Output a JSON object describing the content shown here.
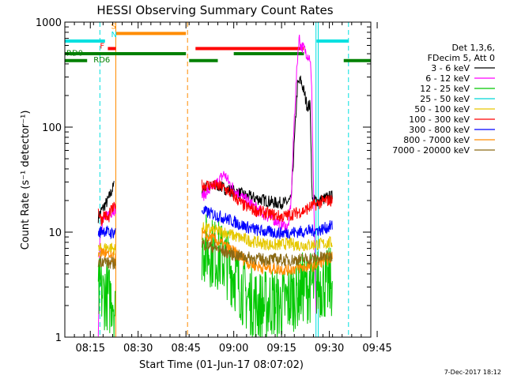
{
  "chart_data": {
    "type": "line",
    "title": "HESSI Observing Summary Count Rates",
    "xlabel": "Start Time (01-Jun-17 08:07:02)",
    "ylabel": "Count Rate (s⁻¹ detector⁻¹)",
    "y_scale": "log",
    "ylim": [
      1,
      1000
    ],
    "xlim_min": [
      0,
      96
    ],
    "x_ticks": [
      {
        "label": "08:15",
        "t": 8
      },
      {
        "label": "08:30",
        "t": 23
      },
      {
        "label": "08:45",
        "t": 38
      },
      {
        "label": "09:00",
        "t": 53
      },
      {
        "label": "09:15",
        "t": 68
      },
      {
        "label": "09:30",
        "t": 83
      },
      {
        "label": "09:45",
        "t": 98
      }
    ],
    "y_ticks": [
      {
        "label": "1",
        "v": 1
      },
      {
        "label": "10",
        "v": 10
      },
      {
        "label": "100",
        "v": 100
      },
      {
        "label": "1000",
        "v": 1000
      }
    ],
    "legend_header": [
      "Det 1,3,6,",
      "FDecim 5, Att 0"
    ],
    "series": [
      {
        "name": "3 - 6 keV",
        "color": "#000000",
        "segments": [
          [
            [
              10.5,
              14
            ],
            [
              11.5,
              16
            ],
            [
              12.5,
              18
            ],
            [
              13.5,
              20
            ],
            [
              14.5,
              24
            ],
            [
              15.5,
              28
            ]
          ],
          [
            [
              43,
              26
            ],
            [
              46,
              27
            ],
            [
              48,
              28
            ],
            [
              50,
              26
            ],
            [
              52,
              25
            ],
            [
              54,
              24
            ],
            [
              57,
              22
            ],
            [
              60,
              21
            ],
            [
              63,
              20
            ],
            [
              66,
              19
            ],
            [
              69,
              19
            ],
            [
              71,
              20
            ],
            [
              72,
              70
            ],
            [
              73,
              250
            ],
            [
              74,
              280
            ],
            [
              75,
              220
            ],
            [
              76,
              160
            ],
            [
              77,
              160
            ],
            [
              77.6,
              20
            ],
            [
              80,
              20
            ],
            [
              82,
              21
            ],
            [
              84,
              22
            ]
          ]
        ]
      },
      {
        "name": "6 - 12 keV",
        "color": "#ff00ff",
        "segments": [
          [
            [
              10.5,
              1.1
            ],
            [
              11,
              10
            ],
            [
              12,
              13
            ],
            [
              13,
              14
            ],
            [
              14,
              15
            ],
            [
              15,
              16
            ],
            [
              16,
              17
            ]
          ],
          [
            [
              43,
              22
            ],
            [
              46,
              26
            ],
            [
              48,
              30
            ],
            [
              50,
              36
            ],
            [
              52,
              28
            ],
            [
              54,
              24
            ],
            [
              56,
              21
            ],
            [
              58,
              19
            ],
            [
              60,
              17
            ],
            [
              62,
              15
            ],
            [
              64,
              14
            ],
            [
              66,
              13
            ],
            [
              68,
              12
            ],
            [
              70,
              11
            ],
            [
              71,
              20
            ],
            [
              72,
              120
            ],
            [
              73,
              450
            ],
            [
              73.5,
              720
            ],
            [
              74,
              600
            ],
            [
              75,
              560
            ],
            [
              76,
              500
            ],
            [
              77,
              450
            ],
            [
              77.5,
              200
            ],
            [
              78,
              30
            ],
            [
              78.5,
              5
            ],
            [
              79,
              1
            ]
          ]
        ]
      },
      {
        "name": "12 - 25 keV",
        "color": "#00c800",
        "segments": [
          [
            [
              10.5,
              2.3
            ],
            [
              11,
              2.8
            ],
            [
              12,
              2.5
            ],
            [
              13,
              2.7
            ],
            [
              14,
              2.2
            ],
            [
              15,
              2.6
            ],
            [
              16,
              1.5
            ]
          ],
          [
            [
              43,
              7.2
            ],
            [
              45,
              6.8
            ],
            [
              47,
              6.2
            ],
            [
              49,
              5.8
            ],
            [
              51,
              5
            ],
            [
              53,
              4
            ],
            [
              55,
              3.2
            ],
            [
              57,
              2.4
            ],
            [
              59,
              2.2
            ],
            [
              61,
              2
            ],
            [
              63,
              2
            ],
            [
              65,
              2.2
            ],
            [
              67,
              2
            ],
            [
              69,
              2.1
            ],
            [
              71,
              2.4
            ],
            [
              73,
              2.7
            ],
            [
              75,
              3
            ],
            [
              77,
              3
            ],
            [
              79,
              3.2
            ],
            [
              81,
              3.3
            ],
            [
              82,
              3.1
            ],
            [
              84,
              3.4
            ]
          ]
        ]
      },
      {
        "name": "25 - 50 keV",
        "color": "#00d8d8",
        "segments": []
      },
      {
        "name": "50 - 100 keV",
        "color": "#e6c800",
        "segments": [
          [
            [
              10.5,
              6.8
            ],
            [
              12,
              7
            ],
            [
              14,
              7.2
            ],
            [
              16,
              6.8
            ]
          ],
          [
            [
              43,
              11
            ],
            [
              46,
              10.5
            ],
            [
              50,
              10
            ],
            [
              54,
              9
            ],
            [
              58,
              8.3
            ],
            [
              62,
              7.8
            ],
            [
              66,
              7.5
            ],
            [
              70,
              7.8
            ],
            [
              74,
              7.5
            ],
            [
              78,
              7.6
            ],
            [
              82,
              7.8
            ],
            [
              84,
              8
            ]
          ]
        ]
      },
      {
        "name": "100 - 300 keV",
        "color": "#ff0000",
        "segments": [
          [
            [
              10.5,
              16
            ],
            [
              11.5,
              13
            ],
            [
              12.5,
              15
            ],
            [
              13.5,
              13
            ],
            [
              14.5,
              16
            ],
            [
              15.5,
              17
            ],
            [
              16,
              20
            ]
          ],
          [
            [
              43,
              28
            ],
            [
              46,
              28
            ],
            [
              49,
              27
            ],
            [
              51,
              25
            ],
            [
              53,
              22
            ],
            [
              56,
              18
            ],
            [
              60,
              16
            ],
            [
              64,
              15
            ],
            [
              68,
              14
            ],
            [
              72,
              15
            ],
            [
              75,
              16
            ],
            [
              78,
              18
            ],
            [
              82,
              20
            ],
            [
              84,
              20
            ]
          ]
        ]
      },
      {
        "name": "300 - 800 keV",
        "color": "#0000ff",
        "segments": [
          [
            [
              10.5,
              9.8
            ],
            [
              12,
              10.5
            ],
            [
              14,
              9.8
            ],
            [
              16,
              10
            ]
          ],
          [
            [
              43,
              16
            ],
            [
              46,
              15
            ],
            [
              49,
              14
            ],
            [
              52,
              13
            ],
            [
              56,
              11.5
            ],
            [
              60,
              10.5
            ],
            [
              64,
              10
            ],
            [
              68,
              9.8
            ],
            [
              72,
              10
            ],
            [
              76,
              10.2
            ],
            [
              80,
              10.5
            ],
            [
              82,
              11
            ],
            [
              84,
              11.5
            ]
          ]
        ]
      },
      {
        "name": "800 - 7000 keV",
        "color": "#ff8c00",
        "segments": [
          [
            [
              10.5,
              6.2
            ],
            [
              12,
              6.5
            ],
            [
              14,
              5.8
            ],
            [
              16,
              5.5
            ]
          ],
          [
            [
              43,
              9.5
            ],
            [
              46,
              8.8
            ],
            [
              50,
              7.5
            ],
            [
              54,
              6.2
            ],
            [
              58,
              5
            ],
            [
              62,
              4.6
            ],
            [
              66,
              4.5
            ],
            [
              70,
              4.4
            ],
            [
              74,
              4.6
            ],
            [
              78,
              4.8
            ],
            [
              82,
              5.5
            ],
            [
              84,
              5.8
            ]
          ]
        ]
      },
      {
        "name": "7000 - 20000 keV",
        "color": "#8b6914",
        "segments": [
          [
            [
              10.5,
              5.2
            ],
            [
              12,
              5.4
            ],
            [
              14,
              5
            ],
            [
              16,
              5.1
            ]
          ],
          [
            [
              43,
              7.8
            ],
            [
              46,
              7.3
            ],
            [
              50,
              6.5
            ],
            [
              54,
              6
            ],
            [
              58,
              5.7
            ],
            [
              62,
              5.5
            ],
            [
              66,
              5.5
            ],
            [
              70,
              5.4
            ],
            [
              74,
              5.5
            ],
            [
              78,
              5.6
            ],
            [
              82,
              5.8
            ],
            [
              84,
              6
            ]
          ]
        ]
      }
    ],
    "flag_bars": [
      {
        "color": "#00e0e0",
        "y": 660,
        "t0": 0,
        "t1": 12.6
      },
      {
        "color": "#00e0e0",
        "y": 660,
        "t0": 79,
        "t1": 89
      },
      {
        "color": "#ff8c00",
        "y": 780,
        "t0": 16,
        "t1": 38
      },
      {
        "color": "#ff0000",
        "y": 560,
        "t0": 13.5,
        "t1": 16
      },
      {
        "color": "#ff0000",
        "y": 560,
        "t0": 41,
        "t1": 75
      },
      {
        "color": "#008000",
        "y": 500,
        "t0": 0,
        "t1": 38
      },
      {
        "color": "#008000",
        "y": 500,
        "t0": 53,
        "t1": 75
      },
      {
        "color": "#008000",
        "y": 430,
        "t0": 0,
        "t1": 7
      },
      {
        "color": "#008000",
        "y": 430,
        "t0": 39,
        "t1": 48
      },
      {
        "color": "#008000",
        "y": 430,
        "t0": 87.5,
        "t1": 96
      }
    ],
    "flag_labels": [
      {
        "text": "S",
        "color": "#ff8c00",
        "t": 14.5,
        "y": 860
      },
      {
        "text": "N",
        "color": "#00e0e0",
        "t": 14.5,
        "y": 720
      },
      {
        "text": "F",
        "color": "#ff0000",
        "t": 11,
        "y": 560
      },
      {
        "text": "RD0",
        "color": "#008000",
        "t": 0.5,
        "y": 480
      },
      {
        "text": "RD6",
        "color": "#008000",
        "t": 9,
        "y": 415
      }
    ],
    "vertical_lines": [
      {
        "t": 11,
        "color": "#00e0e0",
        "style": "dash"
      },
      {
        "t": 89,
        "color": "#00e0e0",
        "style": "dash"
      },
      {
        "t": 38.5,
        "color": "#ff8c00",
        "style": "dash"
      },
      {
        "t": 16,
        "color": "#ff8c00",
        "style": "solid"
      },
      {
        "t": 79.5,
        "color": "#00e0e0",
        "style": "solid"
      },
      {
        "t": 78.8,
        "color": "#00e0e0",
        "style": "solid"
      }
    ]
  },
  "footer_date": "7-Dec-2017 18:12"
}
